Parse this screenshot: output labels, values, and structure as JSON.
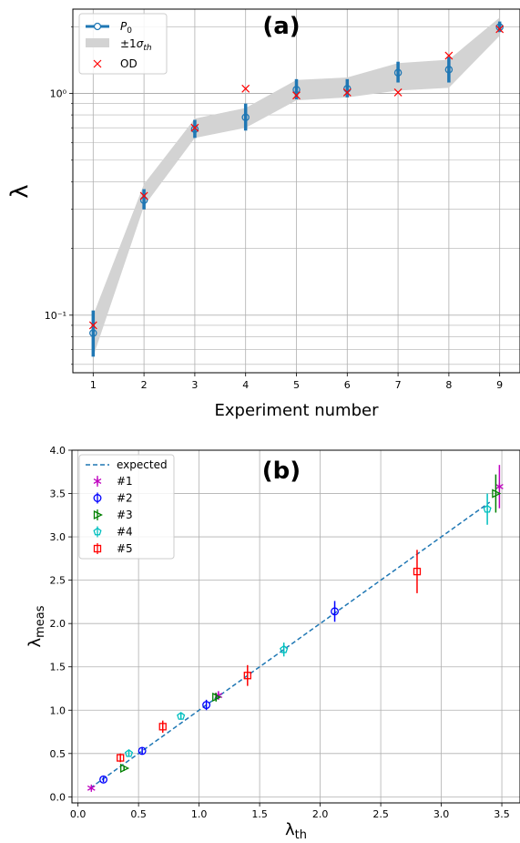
{
  "chart_data": [
    {
      "type": "line",
      "panel_label": "(a)",
      "xlabel": "Experiment number",
      "ylabel": "λ",
      "yscale": "log",
      "ylim": [
        0.055,
        2.4
      ],
      "xlim": [
        0.6,
        9.4
      ],
      "grid": true,
      "legend_position": "top-left",
      "x": [
        1,
        2,
        3,
        4,
        5,
        6,
        7,
        8,
        9
      ],
      "x_tick_labels": [
        "1",
        "2",
        "3",
        "4",
        "5",
        "6",
        "7",
        "8",
        "9"
      ],
      "y_tick_labels": [
        "10⁻¹",
        "10⁰"
      ],
      "y_ticks": [
        0.1,
        1.0
      ],
      "legend": [
        "P0",
        "±1σth",
        "OD"
      ],
      "series": [
        {
          "name": "P0",
          "style": "errorbar-circle",
          "color": "#1f77b4",
          "values": [
            0.083,
            0.33,
            0.69,
            0.78,
            1.04,
            1.05,
            1.24,
            1.28,
            1.99
          ],
          "err_low": [
            0.018,
            0.03,
            0.06,
            0.1,
            0.1,
            0.09,
            0.12,
            0.16,
            0.1
          ],
          "err_high": [
            0.022,
            0.04,
            0.07,
            0.12,
            0.12,
            0.11,
            0.15,
            0.18,
            0.12
          ]
        },
        {
          "name": "±1σth",
          "style": "band",
          "color": "#d3d3d3",
          "lower": [
            0.065,
            0.31,
            0.63,
            0.7,
            0.93,
            0.96,
            1.03,
            1.06,
            1.82
          ],
          "upper": [
            0.1,
            0.39,
            0.77,
            0.86,
            1.15,
            1.18,
            1.37,
            1.42,
            2.2
          ]
        },
        {
          "name": "OD",
          "style": "x-marker",
          "color": "#ff0000",
          "values": [
            0.09,
            0.345,
            0.7,
            1.05,
            0.98,
            1.01,
            1.01,
            1.48,
            1.95
          ]
        }
      ]
    },
    {
      "type": "scatter",
      "panel_label": "(b)",
      "xlabel": "λth",
      "ylabel": "λmeas",
      "xlim": [
        -0.05,
        3.65
      ],
      "ylim": [
        -0.07,
        4.0
      ],
      "x_ticks": [
        0.0,
        0.5,
        1.0,
        1.5,
        2.0,
        2.5,
        3.0,
        3.5
      ],
      "x_tick_labels": [
        "0.0",
        "0.5",
        "1.0",
        "1.5",
        "2.0",
        "2.5",
        "3.0",
        "3.5"
      ],
      "y_ticks": [
        0.0,
        0.5,
        1.0,
        1.5,
        2.0,
        2.5,
        3.0,
        3.5,
        4.0
      ],
      "y_tick_labels": [
        "0.0",
        "0.5",
        "1.0",
        "1.5",
        "2.0",
        "2.5",
        "3.0",
        "3.5",
        "4.0"
      ],
      "grid": true,
      "legend_position": "top-left",
      "legend": [
        "expected",
        "#1",
        "#2",
        "#3",
        "#4",
        "#5"
      ],
      "expected_line": {
        "name": "expected",
        "x": [
          0.1,
          3.4
        ],
        "y": [
          0.1,
          3.4
        ],
        "color": "#1f77b4"
      },
      "series": [
        {
          "name": "#1",
          "marker": "star",
          "color": "#bf00bf",
          "x": [
            0.11,
            1.16,
            3.48
          ],
          "y": [
            0.1,
            1.17,
            3.58
          ],
          "err": [
            0.02,
            0.05,
            0.25
          ]
        },
        {
          "name": "#2",
          "marker": "circle",
          "color": "#0000ff",
          "x": [
            0.21,
            0.53,
            1.06,
            2.12
          ],
          "y": [
            0.2,
            0.53,
            1.06,
            2.14
          ],
          "err": [
            0.03,
            0.04,
            0.06,
            0.12
          ]
        },
        {
          "name": "#3",
          "marker": "triangle-right",
          "color": "#008000",
          "x": [
            0.38,
            1.14,
            3.45
          ],
          "y": [
            0.33,
            1.15,
            3.5
          ],
          "err": [
            0.03,
            0.05,
            0.22
          ]
        },
        {
          "name": "#4",
          "marker": "pentagon",
          "color": "#00bfbf",
          "x": [
            0.42,
            0.85,
            1.7,
            3.38
          ],
          "y": [
            0.5,
            0.93,
            1.7,
            3.32
          ],
          "err": [
            0.03,
            0.04,
            0.08,
            0.18
          ]
        },
        {
          "name": "#5",
          "marker": "square",
          "color": "#ff0000",
          "x": [
            0.35,
            0.7,
            1.4,
            2.8
          ],
          "y": [
            0.45,
            0.81,
            1.4,
            2.6
          ],
          "err": [
            0.05,
            0.07,
            0.12,
            0.25
          ]
        }
      ]
    }
  ]
}
